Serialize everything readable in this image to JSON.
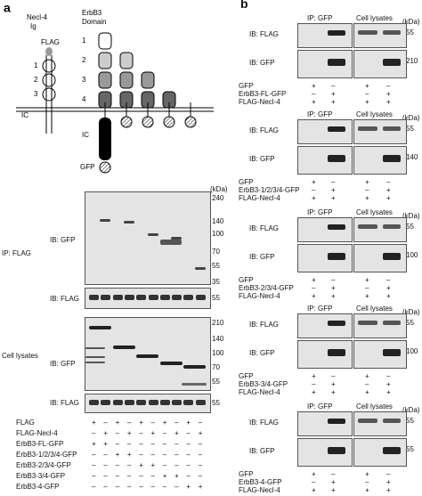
{
  "panel_a": {
    "label": "a",
    "diagram": {
      "necl": "Necl-4",
      "ig": "Ig",
      "flag": "FLAG",
      "erbb3": "ErbB3",
      "domain": "Domain",
      "necl_domains": [
        "1",
        "2",
        "3"
      ],
      "erbb3_domains": [
        "1",
        "2",
        "3",
        "4"
      ],
      "ic_left": "IC",
      "ic_right": "IC",
      "gfp": "GFP"
    },
    "blot": {
      "kda": "(kDa)",
      "ip": "IP: FLAG",
      "ip_gfp": "IB: GFP",
      "ip_gfp_markers": [
        240,
        140,
        100,
        70,
        55,
        35
      ],
      "ip_flag": "IB: FLAG",
      "ip_flag_markers": [
        55
      ],
      "lysates": "Cell lysates",
      "lys_gfp": "IB: GFP",
      "lys_gfp_markers": [
        210,
        140,
        100,
        70,
        55
      ],
      "lys_flag": "IB: FLAG",
      "lys_flag_markers": [
        55
      ]
    },
    "conditions": [
      {
        "name": "FLAG",
        "lanes": [
          "+",
          "–",
          "+",
          "–",
          "+",
          "–",
          "+",
          "–",
          "+",
          "–"
        ]
      },
      {
        "name": "FLAG-Necl-4",
        "lanes": [
          "–",
          "+",
          "–",
          "+",
          "–",
          "+",
          "–",
          "+",
          "–",
          "+"
        ]
      },
      {
        "name": "ErbB3-FL-GFP",
        "lanes": [
          "+",
          "+",
          "–",
          "–",
          "–",
          "–",
          "–",
          "–",
          "–",
          "–"
        ]
      },
      {
        "name": "ErbB3-1/2/3/4-GFP",
        "lanes": [
          "–",
          "–",
          "+",
          "+",
          "–",
          "–",
          "–",
          "–",
          "–",
          "–"
        ]
      },
      {
        "name": "ErbB3-2/3/4-GFP",
        "lanes": [
          "–",
          "–",
          "–",
          "–",
          "+",
          "+",
          "–",
          "–",
          "–",
          "–"
        ]
      },
      {
        "name": "ErbB3-3/4-GFP",
        "lanes": [
          "–",
          "–",
          "–",
          "–",
          "–",
          "–",
          "+",
          "+",
          "–",
          "–"
        ]
      },
      {
        "name": "ErbB3-4-GFP",
        "lanes": [
          "–",
          "–",
          "–",
          "–",
          "–",
          "–",
          "–",
          "–",
          "+",
          "+"
        ]
      }
    ]
  },
  "panel_b": {
    "label": "b",
    "blocks": [
      {
        "ip": "IP: GFP",
        "lysates": "Cell lysates",
        "kda": "(kDa)",
        "ib_flag": "IB: FLAG",
        "flag_marker": 55,
        "ib_gfp": "IB: GFP",
        "gfp_marker": 210,
        "conditions": [
          {
            "name": "GFP",
            "lanes": [
              "+",
              "–",
              "+",
              "–"
            ]
          },
          {
            "name": "ErbB3-FL-GFP",
            "lanes": [
              "–",
              "+",
              "–",
              "+"
            ]
          },
          {
            "name": "FLAG-Necl-4",
            "lanes": [
              "+",
              "+",
              "+",
              "+"
            ]
          }
        ]
      },
      {
        "ip": "IP: GFP",
        "lysates": "Cell lysates",
        "kda": "(kDa)",
        "ib_flag": "IB: FLAG",
        "flag_marker": 55,
        "ib_gfp": "IB: GFP",
        "gfp_marker": 140,
        "conditions": [
          {
            "name": "GFP",
            "lanes": [
              "+",
              "–",
              "+",
              "–"
            ]
          },
          {
            "name": "ErbB3-1/2/3/4-GFP",
            "lanes": [
              "–",
              "+",
              "–",
              "+"
            ]
          },
          {
            "name": "FLAG-Necl-4",
            "lanes": [
              "+",
              "+",
              "+",
              "+"
            ]
          }
        ]
      },
      {
        "ip": "IP: GFP",
        "lysates": "Cell lysates",
        "kda": "(kDa)",
        "ib_flag": "IB: FLAG",
        "flag_marker": 55,
        "ib_gfp": "IB: GFP",
        "gfp_marker": 100,
        "conditions": [
          {
            "name": "GFP",
            "lanes": [
              "+",
              "–",
              "+",
              "–"
            ]
          },
          {
            "name": "ErbB3-2/3/4-GFP",
            "lanes": [
              "–",
              "+",
              "–",
              "+"
            ]
          },
          {
            "name": "FLAG-Necl-4",
            "lanes": [
              "+",
              "+",
              "+",
              "+"
            ]
          }
        ]
      },
      {
        "ip": "IP: GFP",
        "lysates": "Cell lysates",
        "kda": "(kDa)",
        "ib_flag": "IB: FLAG",
        "flag_marker": 55,
        "ib_gfp": "IB: GFP",
        "gfp_marker": 100,
        "conditions": [
          {
            "name": "GFP",
            "lanes": [
              "+",
              "–",
              "+",
              "–"
            ]
          },
          {
            "name": "ErbB3-3/4-GFP",
            "lanes": [
              "–",
              "+",
              "–",
              "+"
            ]
          },
          {
            "name": "FLAG-Necl-4",
            "lanes": [
              "+",
              "+",
              "+",
              "+"
            ]
          }
        ]
      },
      {
        "ip": "IP: GFP",
        "lysates": "Cell lysates",
        "kda": "(kDa)",
        "ib_flag": "IB: FLAG",
        "flag_marker": 55,
        "ib_gfp": "IB: GFP",
        "gfp_marker": 55,
        "conditions": [
          {
            "name": "GFP",
            "lanes": [
              "+",
              "–",
              "+",
              "–"
            ]
          },
          {
            "name": "ErbB3-4-GFP",
            "lanes": [
              "–",
              "+",
              "–",
              "+"
            ]
          },
          {
            "name": "FLAG-Necl-4",
            "lanes": [
              "+",
              "+",
              "+",
              "+"
            ]
          }
        ]
      }
    ]
  }
}
